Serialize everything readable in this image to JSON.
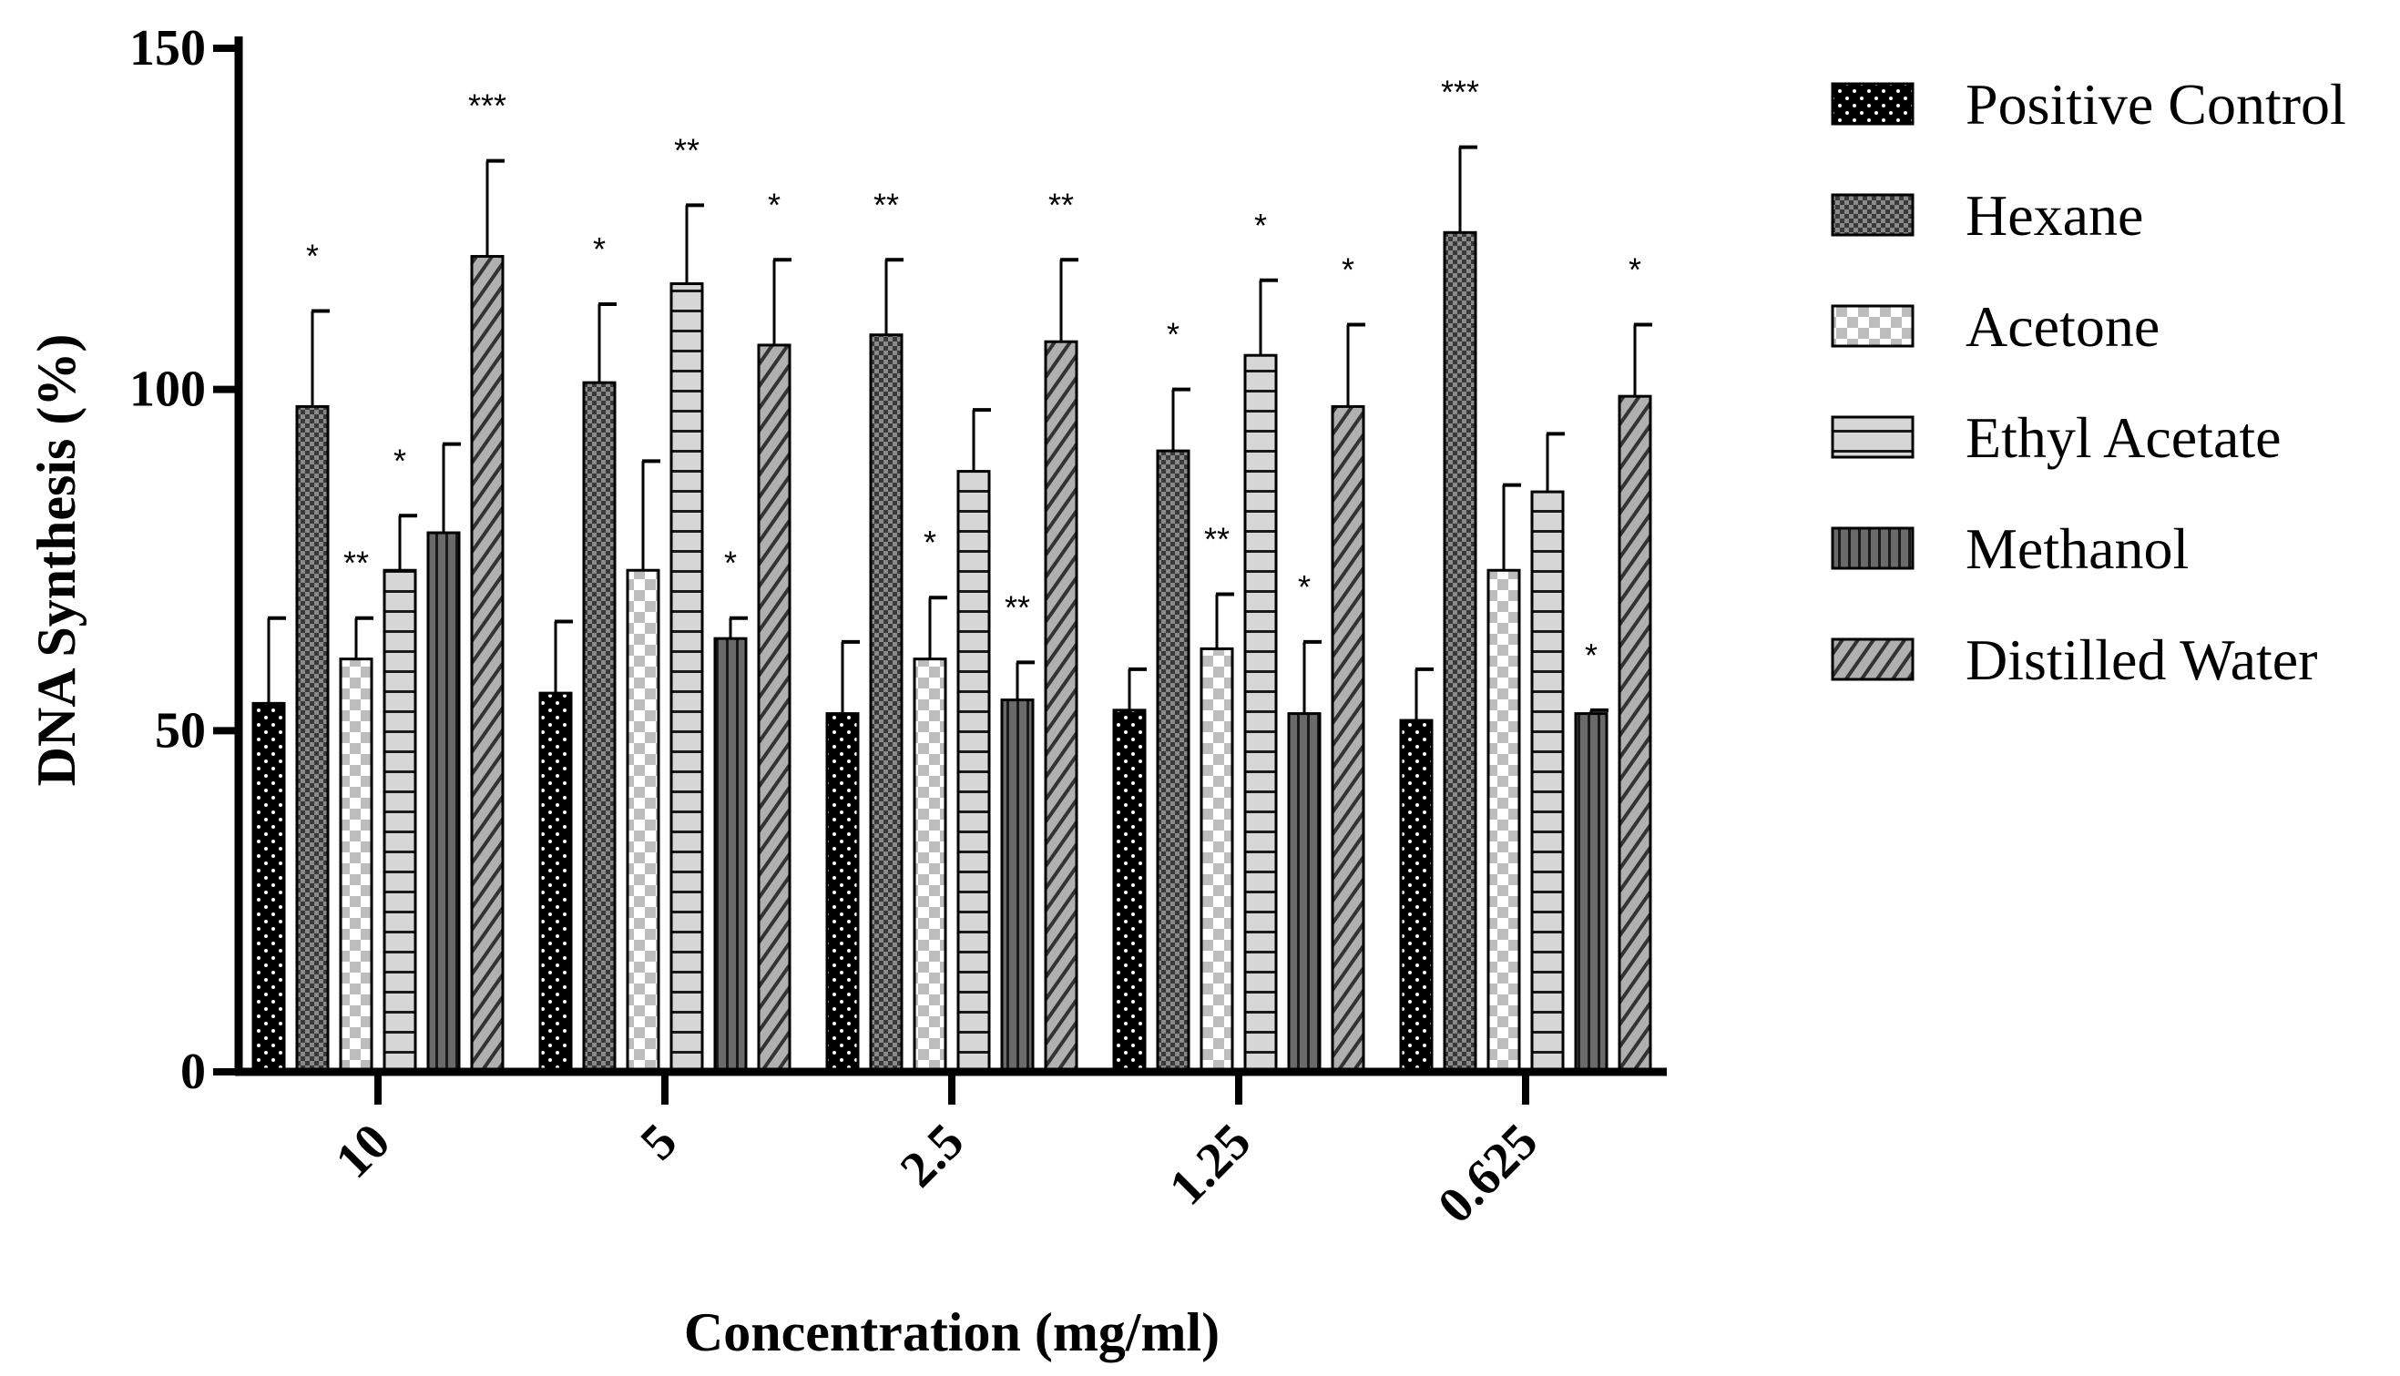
{
  "chart_data": {
    "type": "bar",
    "title": "",
    "xlabel": "Concentration (mg/ml)",
    "ylabel": "DNA Synthesis (%)",
    "ylim": [
      0,
      150
    ],
    "yticks": [
      "0",
      "50",
      "100",
      "150"
    ],
    "categories": [
      "10",
      "5",
      "2.5",
      "1.25",
      "0.625"
    ],
    "legend_position": "right",
    "grid": false,
    "series": [
      {
        "name": "Positive Control",
        "pattern": "dots",
        "values": [
          54,
          55.5,
          52.5,
          53,
          51.5
        ],
        "errors": [
          12.5,
          10.5,
          10.5,
          6,
          7.5
        ],
        "significance": [
          "",
          "",
          "",
          "",
          ""
        ]
      },
      {
        "name": "Hexane",
        "pattern": "checker-dark",
        "values": [
          97.5,
          101,
          108,
          91,
          123
        ],
        "errors": [
          14,
          11.5,
          11,
          9,
          12.5
        ],
        "significance": [
          "*",
          "*",
          "**",
          "*",
          "***"
        ]
      },
      {
        "name": "Acetone",
        "pattern": "checker-light",
        "values": [
          60.5,
          73.5,
          60.5,
          62,
          73.5
        ],
        "errors": [
          6,
          16,
          9,
          8,
          12.5
        ],
        "significance": [
          "**",
          "",
          "*",
          "**",
          ""
        ]
      },
      {
        "name": "Ethyl Acetate",
        "pattern": "horizontal-lines",
        "values": [
          73.5,
          115.5,
          88,
          105,
          85
        ],
        "errors": [
          8,
          11.5,
          9,
          11,
          8.5
        ],
        "significance": [
          "*",
          "**",
          "",
          "*",
          ""
        ]
      },
      {
        "name": "Methanol",
        "pattern": "vertical-lines",
        "values": [
          79,
          63.5,
          54.5,
          52.5,
          52.5
        ],
        "errors": [
          13,
          3,
          5.5,
          10.5,
          0.5
        ],
        "significance": [
          "",
          "*",
          "**",
          "*",
          "*"
        ]
      },
      {
        "name": "Distilled Water",
        "pattern": "diagonal-lines",
        "values": [
          119.5,
          106.5,
          107,
          97.5,
          99
        ],
        "errors": [
          14,
          12.5,
          12,
          12,
          10.5
        ],
        "significance": [
          "***",
          "*",
          "**",
          "*",
          "*"
        ]
      }
    ]
  },
  "colors": {
    "axis": "#000000",
    "positive_control_fill": "#000000",
    "positive_control_dot": "#ffffff",
    "hexane_a": "#3a3a3a",
    "hexane_b": "#8a8a8a",
    "acetone_a": "#ffffff",
    "acetone_b": "#bdbdbd",
    "ethyl_fill": "#d6d6d6",
    "ethyl_line": "#1a1a1a",
    "methanol_fill": "#6a6a6a",
    "methanol_line": "#1a1a1a",
    "water_fill": "#b0b0b0",
    "water_line": "#333333"
  }
}
